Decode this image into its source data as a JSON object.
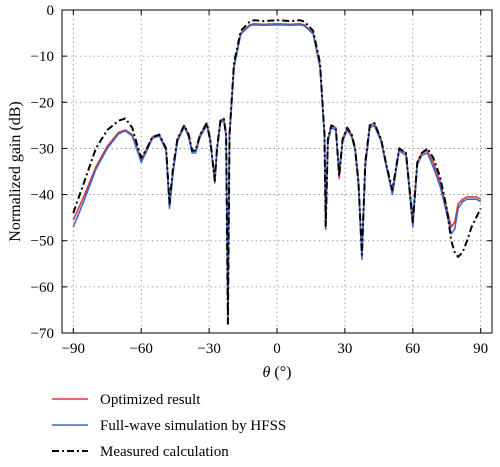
{
  "chart_data": {
    "type": "line",
    "xlabel_symbol": "θ",
    "xlabel_unit": "(°)",
    "ylabel": "Normalized gain (dB)",
    "xlim": [
      -95,
      95
    ],
    "ylim": [
      -70,
      0
    ],
    "xticks": [
      "-90",
      "-60",
      "-30",
      "0",
      "30",
      "60",
      "90"
    ],
    "yticks": [
      "0",
      "-10",
      "-20",
      "-30",
      "-40",
      "-50",
      "-60",
      "-70"
    ],
    "grid": true,
    "legend_position": "bottom-left",
    "series": [
      {
        "name": "Optimized result",
        "color": "#e03a3a",
        "style": "solid",
        "x": [
          -90,
          -85,
          -80,
          -75,
          -70,
          -67,
          -64,
          -61,
          -60,
          -58,
          -55,
          -52,
          -49,
          -47.5,
          -46,
          -44,
          -41,
          -39,
          -37.5,
          -36,
          -34,
          -31,
          -29.5,
          -27.5,
          -26.5,
          -25,
          -23.5,
          -22.5,
          -21.7,
          -21,
          -19,
          -16,
          -12,
          -10,
          -6,
          0,
          6,
          10,
          12,
          16,
          19,
          21,
          21.5,
          22.5,
          24,
          26,
          27.5,
          29,
          31,
          33,
          34.5,
          36,
          37.5,
          39,
          41,
          43,
          46,
          48.5,
          51,
          54,
          57,
          60,
          62,
          64,
          66.5,
          69,
          72,
          75,
          77,
          78.5,
          80,
          82,
          84,
          86,
          88,
          90
        ],
        "y": [
          -45.5,
          -40,
          -34,
          -29.5,
          -26.5,
          -26,
          -27,
          -31,
          -32.5,
          -30.5,
          -27.5,
          -27,
          -30,
          -42.5,
          -35,
          -28,
          -25,
          -27,
          -30.5,
          -30.5,
          -27,
          -24.5,
          -28,
          -37.5,
          -30,
          -24,
          -23.5,
          -27,
          -67,
          -27,
          -12,
          -5,
          -3.2,
          -3,
          -3.1,
          -3,
          -3.1,
          -3,
          -3.2,
          -5,
          -12,
          -27,
          -47.5,
          -28,
          -25,
          -25.5,
          -36.5,
          -28,
          -25.5,
          -27,
          -30,
          -37,
          -53,
          -33,
          -25,
          -24.5,
          -28,
          -34,
          -39.5,
          -30,
          -31,
          -45.5,
          -33,
          -31,
          -30.5,
          -33,
          -37,
          -43,
          -47,
          -46,
          -42,
          -41,
          -40.5,
          -40.5,
          -40.5,
          -41
        ]
      },
      {
        "name": "Full-wave simulation by HFSS",
        "color": "#3d68c8",
        "style": "solid",
        "x": [
          -90,
          -85,
          -80,
          -75,
          -70,
          -67,
          -64,
          -61,
          -60,
          -58,
          -55,
          -52,
          -49,
          -47.5,
          -46,
          -44,
          -41,
          -39,
          -37.5,
          -36,
          -34,
          -31,
          -29.5,
          -27.5,
          -26.5,
          -25,
          -23.5,
          -22.5,
          -21.7,
          -21,
          -19,
          -16,
          -12,
          -10,
          -6,
          0,
          6,
          10,
          12,
          16,
          19,
          21,
          21.5,
          22.5,
          24,
          26,
          27.5,
          29,
          31,
          33,
          34.5,
          36,
          37.5,
          39,
          41,
          43,
          46,
          48.5,
          51,
          54,
          57,
          60,
          62,
          64,
          66.5,
          69,
          72,
          75,
          77,
          78.5,
          80,
          82,
          84,
          86,
          88,
          90
        ],
        "y": [
          -47,
          -41,
          -34.5,
          -30,
          -26.8,
          -26.2,
          -27.3,
          -31.5,
          -33,
          -31,
          -27.8,
          -27.3,
          -30.5,
          -43,
          -35.5,
          -28.5,
          -25.3,
          -27.5,
          -31,
          -31,
          -27.5,
          -25,
          -28.5,
          -36.5,
          -30.5,
          -24.5,
          -24,
          -27.5,
          -66,
          -27.5,
          -12.5,
          -5.2,
          -3.4,
          -3.2,
          -3.3,
          -3.2,
          -3.3,
          -3.2,
          -3.4,
          -5.2,
          -12.5,
          -27.5,
          -47,
          -28.5,
          -25.5,
          -26,
          -35,
          -28.5,
          -26,
          -27.5,
          -30.5,
          -38,
          -54,
          -34,
          -25.5,
          -25,
          -28.5,
          -34.5,
          -40,
          -30.5,
          -31.5,
          -47,
          -33.5,
          -31.5,
          -31,
          -34,
          -38,
          -44,
          -48.5,
          -47.5,
          -43,
          -41.5,
          -41,
          -41,
          -41,
          -41.5
        ]
      },
      {
        "name": "Measured calculation",
        "color": "#000000",
        "style": "dashdot",
        "x": [
          -90,
          -85,
          -80,
          -75,
          -70,
          -67,
          -64,
          -61,
          -60,
          -58,
          -55,
          -52,
          -49,
          -47.5,
          -46,
          -44,
          -41,
          -39,
          -37.5,
          -36,
          -34,
          -31,
          -29.5,
          -27.5,
          -26.5,
          -25,
          -23.5,
          -22.5,
          -21.7,
          -21,
          -19,
          -16,
          -12,
          -10,
          -6,
          0,
          6,
          10,
          12,
          16,
          19,
          21,
          21.5,
          22.5,
          24,
          26,
          27.5,
          29,
          31,
          33,
          34.5,
          36,
          37.5,
          39,
          41,
          43,
          46,
          48.5,
          51,
          54,
          57,
          60,
          62,
          64,
          66.5,
          69,
          72,
          75,
          77,
          78.5,
          80,
          82,
          84,
          86,
          88,
          90
        ],
        "y": [
          -44,
          -37,
          -30,
          -26,
          -24,
          -23.5,
          -25.5,
          -30.5,
          -32,
          -30.5,
          -27.5,
          -27,
          -30,
          -42,
          -34.5,
          -28,
          -25,
          -27,
          -30.5,
          -30.5,
          -27,
          -24.5,
          -28,
          -37,
          -30,
          -24,
          -23.5,
          -27,
          -68,
          -27,
          -11.5,
          -4.5,
          -2.5,
          -2.2,
          -2.4,
          -2.2,
          -2.4,
          -2.2,
          -2.5,
          -4.5,
          -11.5,
          -27,
          -47,
          -28,
          -25,
          -25.5,
          -36,
          -28,
          -25.5,
          -27,
          -30,
          -37.5,
          -53,
          -33,
          -25,
          -24.5,
          -28,
          -34,
          -39,
          -30,
          -31,
          -46,
          -33,
          -31,
          -30,
          -32,
          -36,
          -43,
          -50,
          -52.5,
          -53.5,
          -52.5,
          -50,
          -47,
          -45,
          -43
        ]
      }
    ]
  }
}
